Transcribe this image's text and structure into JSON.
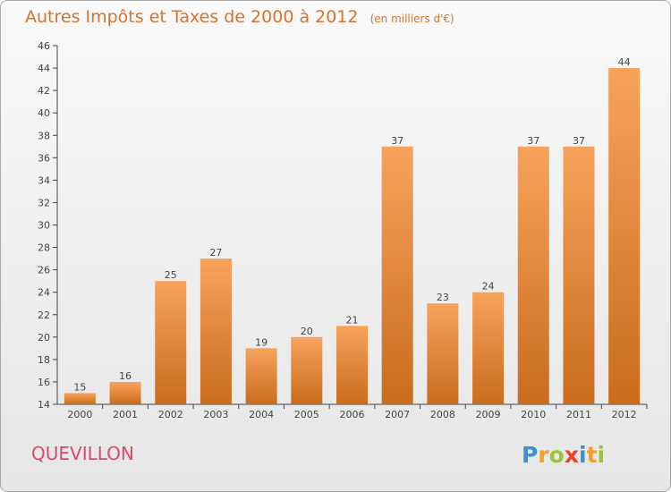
{
  "chart_data": {
    "type": "bar",
    "title": "Autres Impôts et Taxes de 2000 à 2012",
    "subtitle": "(en milliers d'€)",
    "categories": [
      "2000",
      "2001",
      "2002",
      "2003",
      "2004",
      "2005",
      "2006",
      "2007",
      "2008",
      "2009",
      "2010",
      "2011",
      "2012"
    ],
    "values": [
      15,
      16,
      25,
      27,
      19,
      20,
      21,
      37,
      23,
      24,
      37,
      37,
      44
    ],
    "ylim": [
      14,
      46
    ],
    "yticks": [
      14,
      16,
      18,
      20,
      22,
      24,
      26,
      28,
      30,
      32,
      34,
      36,
      38,
      40,
      42,
      44,
      46
    ],
    "xlabel": "",
    "ylabel": "",
    "grid": false,
    "legend": "none",
    "bar_color_top": "#f7a35c",
    "bar_color_bottom": "#c96c1c"
  },
  "commune": "QUEVILLON",
  "logo": {
    "letters": [
      "P",
      "r",
      "o",
      "x",
      "i",
      "t",
      "i"
    ],
    "colors": [
      "#3a8fd6",
      "#f0a030",
      "#9bc43c",
      "#e8452c",
      "#3a8fd6",
      "#f0a030",
      "#9bc43c"
    ]
  }
}
